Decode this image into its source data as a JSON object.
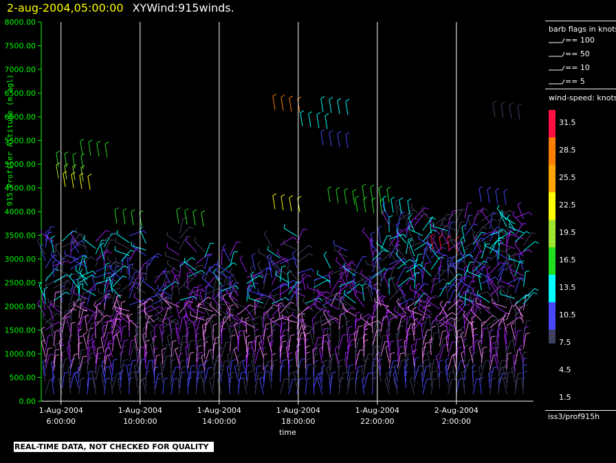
{
  "header": {
    "datetime": "2-aug-2004,05:00:00",
    "product": "XYWind:915winds."
  },
  "chart_data": {
    "type": "wind-barb time-height",
    "xlabel": "time",
    "ylabel": "915 Profiler Altitude (m agl)",
    "ylim": [
      0,
      8000
    ],
    "y_ticks": [
      "0.00",
      "500.00",
      "1000.00",
      "1500.00",
      "2000.00",
      "2500.00",
      "3000.00",
      "3500.00",
      "4000.00",
      "4500.00",
      "5000.00",
      "5500.00",
      "6000.00",
      "6500.00",
      "7000.00",
      "7500.00",
      "8000.00"
    ],
    "x_ticks": [
      {
        "hour": 6,
        "date": "1-Aug-2004",
        "time": "6:00:00"
      },
      {
        "hour": 10,
        "date": "1-Aug-2004",
        "time": "10:00:00"
      },
      {
        "hour": 14,
        "date": "1-Aug-2004",
        "time": "14:00:00"
      },
      {
        "hour": 18,
        "date": "1-Aug-2004",
        "time": "18:00:00"
      },
      {
        "hour": 22,
        "date": "1-Aug-2004",
        "time": "22:00:00"
      },
      {
        "hour": 26,
        "date": "2-Aug-2004",
        "time": "2:00:00"
      }
    ],
    "x_range_hours": [
      5,
      29.9
    ],
    "vertical_grid": true,
    "wind_speed_scale": {
      "title": "wind-speed: knots",
      "levels": [
        {
          "value": "31.5",
          "color": "#ff1040"
        },
        {
          "value": "28.5",
          "color": "#ff8000"
        },
        {
          "value": "25.5",
          "color": "#ffa500"
        },
        {
          "value": "22.5",
          "color": "#ffff00"
        },
        {
          "value": "19.5",
          "color": "#a0e830"
        },
        {
          "value": "16.5",
          "color": "#20e020"
        },
        {
          "value": "13.5",
          "color": "#00ffff"
        },
        {
          "value": "10.5",
          "color": "#4848ff"
        },
        {
          "value": "7.5",
          "color": "#404060"
        },
        {
          "value": "4.5",
          "color": "#a020f0"
        },
        {
          "value": "1.5",
          "color": "#ee82ee"
        }
      ]
    },
    "barb_legend": {
      "title": "barb flags in knots",
      "items": [
        "== 100",
        "== 50",
        "== 10",
        "== 5"
      ]
    }
  },
  "footer": {
    "station": "iss3/prof915h",
    "notice": "REAL-TIME DATA, NOT CHECKED FOR QUALITY"
  }
}
